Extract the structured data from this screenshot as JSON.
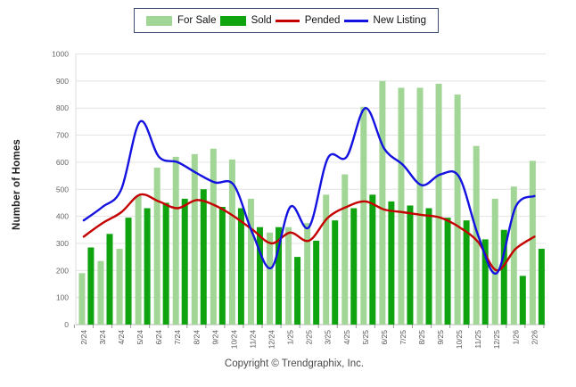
{
  "ylabel": "Number of Homes",
  "footer": "Copyright © Trendgraphix, Inc.",
  "chart_data": {
    "type": "bar",
    "subtype": "combo-bar-line",
    "title": "",
    "xlabel": "",
    "ylabel": "Number of Homes",
    "ylim": [
      0,
      1000
    ],
    "ytick_step": 100,
    "grid": true,
    "legend_position": "top-center",
    "categories": [
      "2/24",
      "3/24",
      "4/24",
      "5/24",
      "6/24",
      "7/24",
      "8/24",
      "9/24",
      "10/24",
      "11/24",
      "12/24",
      "1/25",
      "2/25",
      "3/25",
      "4/25",
      "5/25",
      "6/25",
      "7/25",
      "8/25",
      "9/25",
      "10/25",
      "11/25",
      "12/25",
      "1/26",
      "2/26"
    ],
    "bar_series": [
      {
        "name": "For Sale",
        "color": "#a2d696",
        "values": [
          190,
          235,
          280,
          475,
          580,
          620,
          630,
          650,
          610,
          465,
          340,
          360,
          375,
          480,
          555,
          805,
          900,
          875,
          875,
          890,
          850,
          660,
          465,
          510,
          605
        ]
      },
      {
        "name": "Sold",
        "color": "#10a310",
        "values": [
          285,
          335,
          395,
          430,
          450,
          465,
          500,
          435,
          430,
          360,
          360,
          250,
          310,
          385,
          430,
          480,
          455,
          440,
          430,
          395,
          385,
          315,
          350,
          180,
          280
        ]
      }
    ],
    "line_series": [
      {
        "name": "Pended",
        "color": "#c40000",
        "values": [
          325,
          375,
          415,
          480,
          455,
          430,
          460,
          440,
          400,
          350,
          300,
          340,
          310,
          395,
          435,
          455,
          425,
          415,
          405,
          395,
          360,
          305,
          200,
          280,
          325
        ]
      },
      {
        "name": "New Listing",
        "color": "#1412e0",
        "values": [
          385,
          435,
          500,
          750,
          620,
          600,
          560,
          525,
          515,
          335,
          210,
          435,
          360,
          615,
          620,
          800,
          650,
          590,
          515,
          555,
          545,
          330,
          190,
          435,
          475
        ]
      }
    ],
    "axis_colors": {
      "gridline": "#e4e4e4",
      "axis_line": "#b5b5b5",
      "tick": "#999999",
      "tick_label": "#666666"
    }
  }
}
